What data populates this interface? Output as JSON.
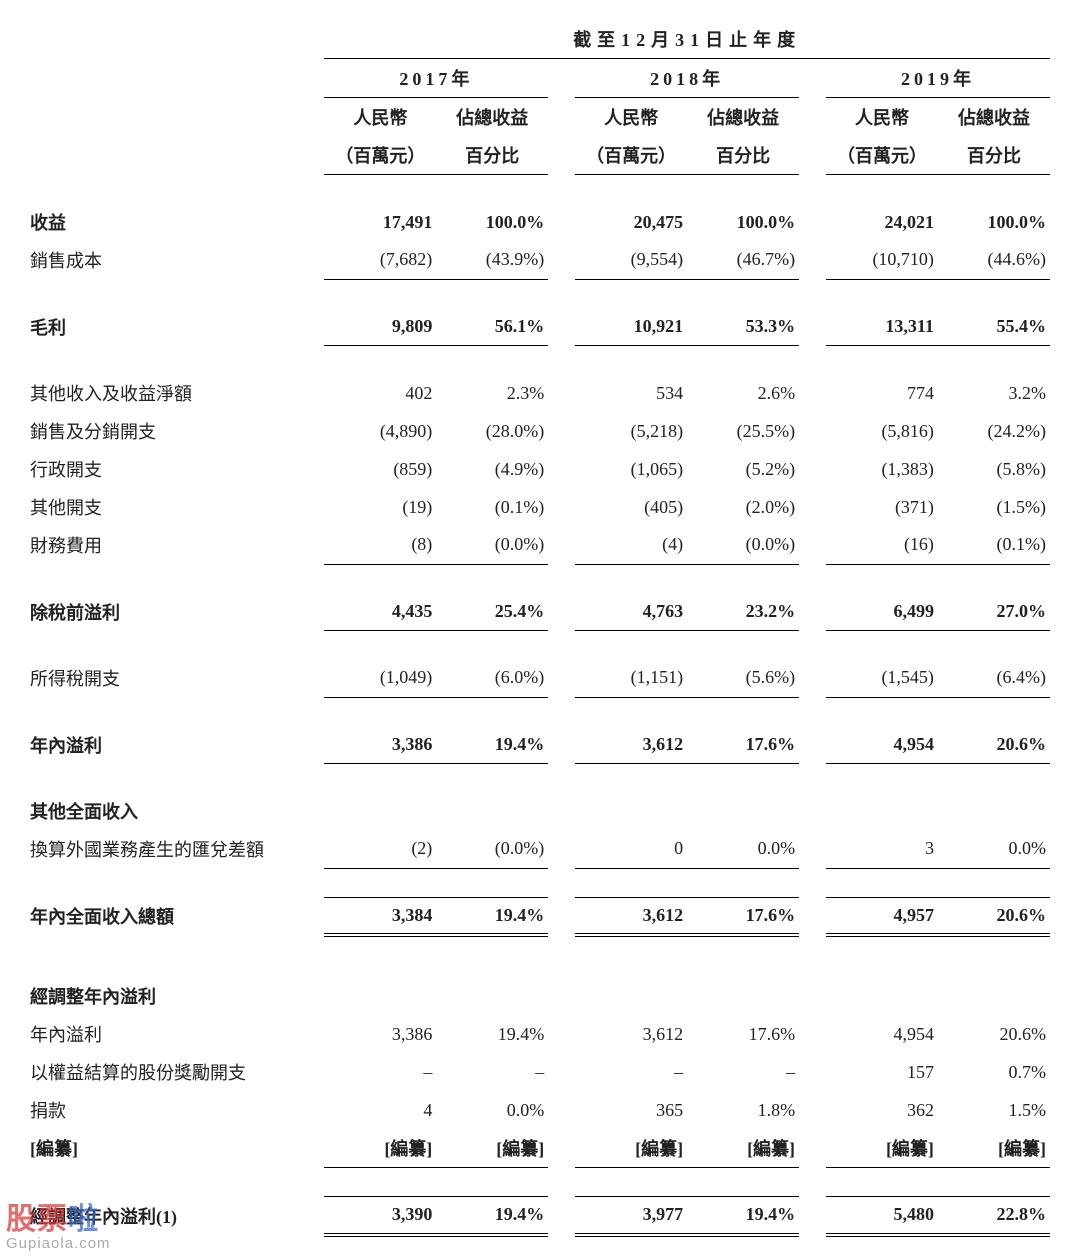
{
  "headers": {
    "super": "截至12月31日止年度",
    "years": [
      "2017年",
      "2018年",
      "2019年"
    ],
    "sub1": "人民幣",
    "sub2": "佔總收益",
    "sub1b": "（百萬元）",
    "sub2b": "百分比"
  },
  "rows": {
    "revenue": {
      "label": "收益",
      "v": [
        "17,491",
        "100.0%",
        "20,475",
        "100.0%",
        "24,021",
        "100.0%"
      ]
    },
    "cogs": {
      "label": "銷售成本",
      "v": [
        "(7,682)",
        "(43.9%)",
        "(9,554)",
        "(46.7%)",
        "(10,710)",
        "(44.6%)"
      ]
    },
    "gross": {
      "label": "毛利",
      "v": [
        "9,809",
        "56.1%",
        "10,921",
        "53.3%",
        "13,311",
        "55.4%"
      ]
    },
    "other_income": {
      "label": "其他收入及收益淨額",
      "v": [
        "402",
        "2.3%",
        "534",
        "2.6%",
        "774",
        "3.2%"
      ]
    },
    "selling": {
      "label": "銷售及分銷開支",
      "v": [
        "(4,890)",
        "(28.0%)",
        "(5,218)",
        "(25.5%)",
        "(5,816)",
        "(24.2%)"
      ]
    },
    "admin": {
      "label": "行政開支",
      "v": [
        "(859)",
        "(4.9%)",
        "(1,065)",
        "(5.2%)",
        "(1,383)",
        "(5.8%)"
      ]
    },
    "other_exp": {
      "label": "其他開支",
      "v": [
        "(19)",
        "(0.1%)",
        "(405)",
        "(2.0%)",
        "(371)",
        "(1.5%)"
      ]
    },
    "finance": {
      "label": "財務費用",
      "v": [
        "(8)",
        "(0.0%)",
        "(4)",
        "(0.0%)",
        "(16)",
        "(0.1%)"
      ]
    },
    "pbt": {
      "label": "除稅前溢利",
      "v": [
        "4,435",
        "25.4%",
        "4,763",
        "23.2%",
        "6,499",
        "27.0%"
      ]
    },
    "tax": {
      "label": "所得稅開支",
      "v": [
        "(1,049)",
        "(6.0%)",
        "(1,151)",
        "(5.6%)",
        "(1,545)",
        "(6.4%)"
      ]
    },
    "profit_year": {
      "label": "年內溢利",
      "v": [
        "3,386",
        "19.4%",
        "3,612",
        "17.6%",
        "4,954",
        "20.6%"
      ]
    },
    "oci_title": {
      "label": "其他全面收入"
    },
    "fx": {
      "label": "換算外國業務產生的匯兌差額",
      "v": [
        "(2)",
        "(0.0%)",
        "0",
        "0.0%",
        "3",
        "0.0%"
      ]
    },
    "tci": {
      "label": "年內全面收入總額",
      "v": [
        "3,384",
        "19.4%",
        "3,612",
        "17.6%",
        "4,957",
        "20.6%"
      ]
    },
    "adj_title": {
      "label": "經調整年內溢利"
    },
    "adj_profit": {
      "label": "年內溢利",
      "v": [
        "3,386",
        "19.4%",
        "3,612",
        "17.6%",
        "4,954",
        "20.6%"
      ]
    },
    "share_comp": {
      "label": "以權益結算的股份獎勵開支",
      "v": [
        "–",
        "–",
        "–",
        "–",
        "157",
        "0.7%"
      ]
    },
    "donation": {
      "label": "捐款",
      "v": [
        "4",
        "0.0%",
        "365",
        "1.8%",
        "362",
        "1.5%"
      ]
    },
    "redact": {
      "label": "[編纂]",
      "v": [
        "[編纂]",
        "[編纂]",
        "[編纂]",
        "[編纂]",
        "[編纂]",
        "[編纂]"
      ]
    },
    "adj_total": {
      "label": "經調整年內溢利(1)",
      "v": [
        "3,390",
        "19.4%",
        "3,977",
        "19.4%",
        "5,480",
        "22.8%"
      ]
    }
  },
  "watermark": {
    "top_a": "股票",
    "top_b": "啦",
    "bottom": "Gupiaola.com"
  }
}
